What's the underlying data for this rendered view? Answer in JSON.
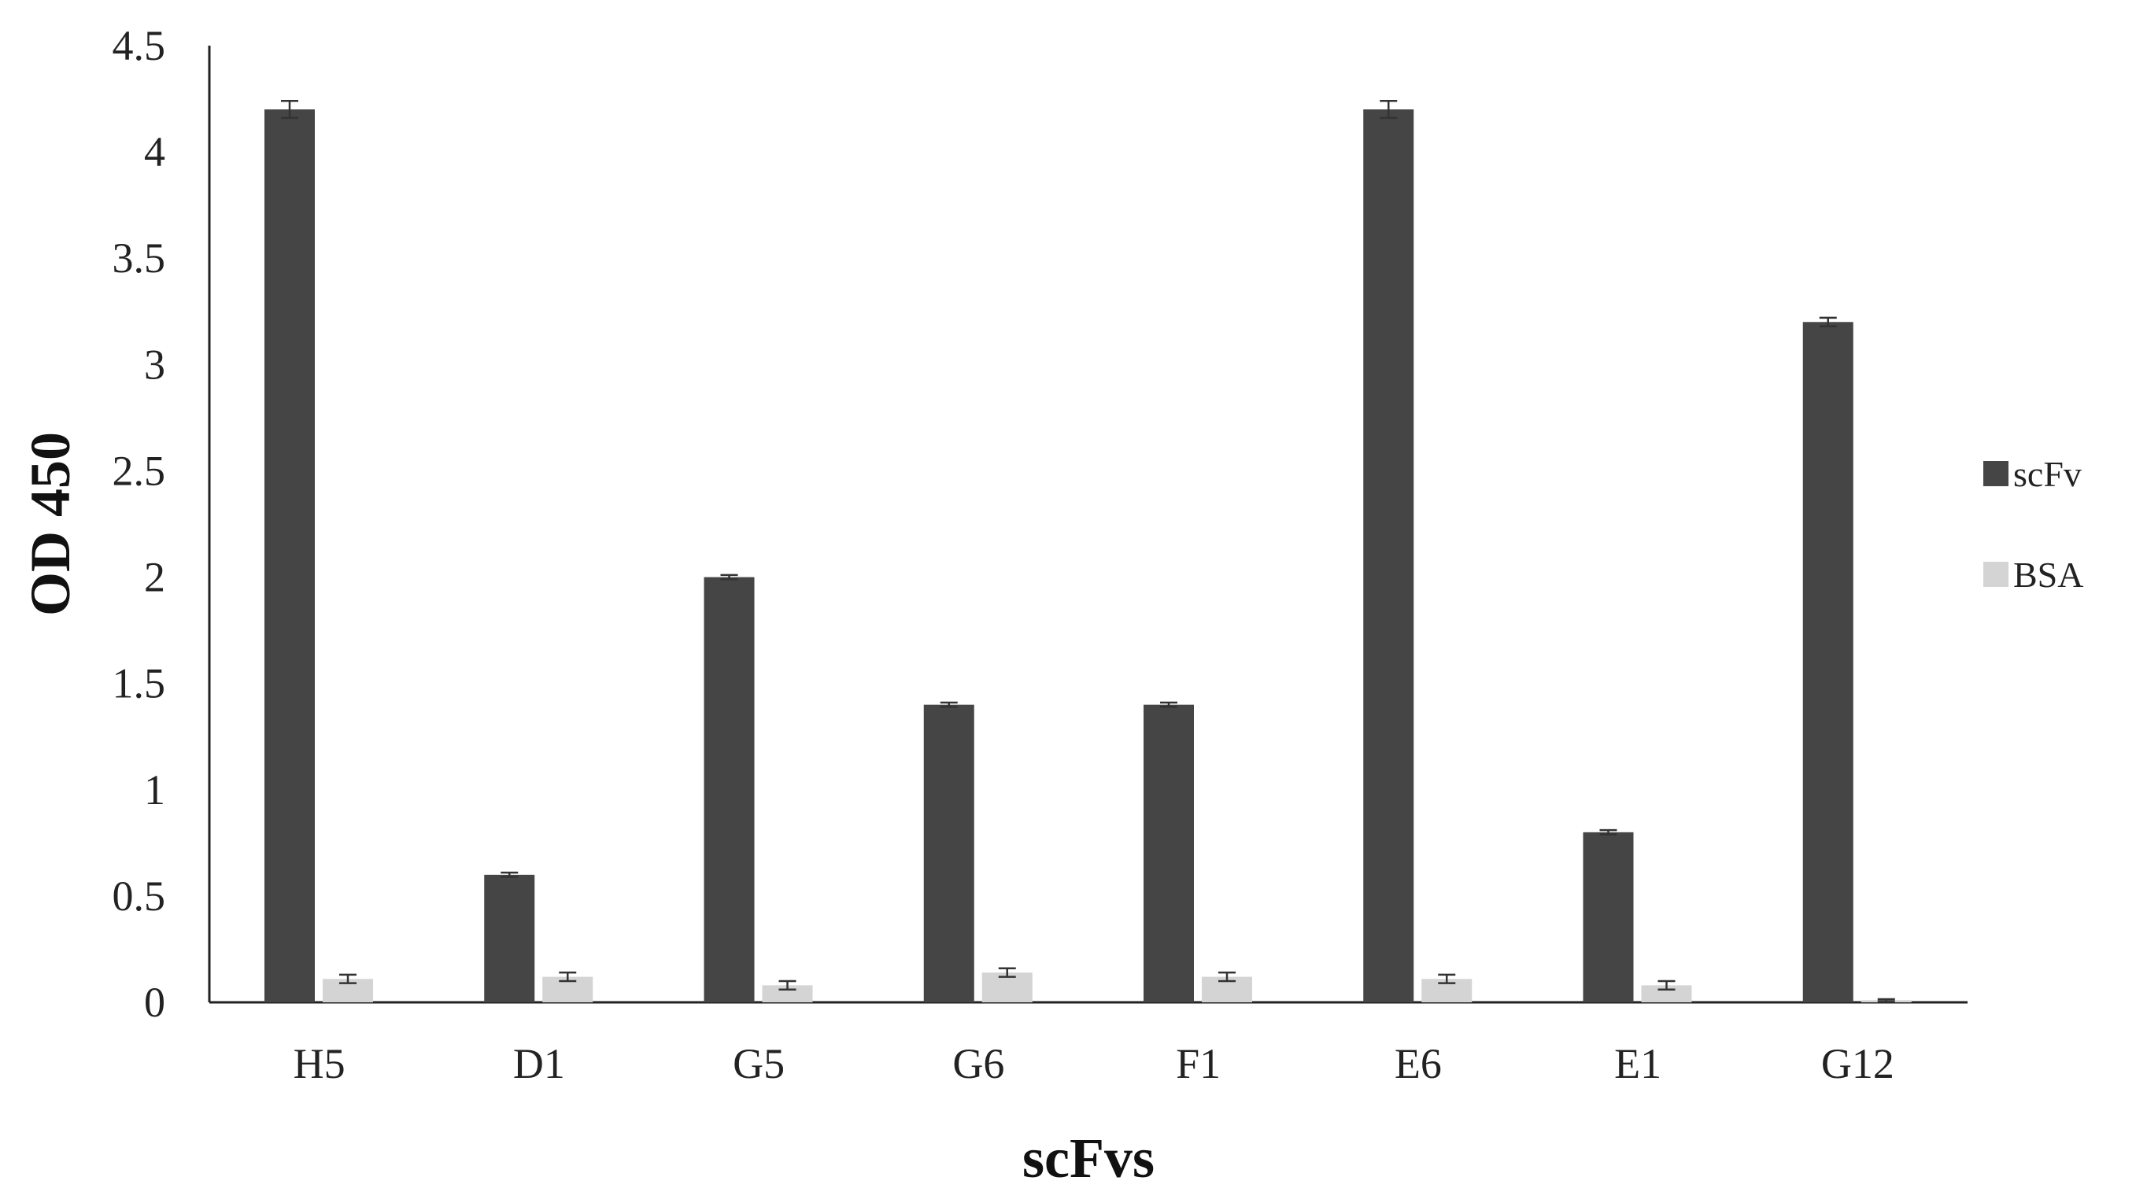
{
  "chart_data": {
    "type": "bar",
    "title": "",
    "xlabel": "scFvs",
    "ylabel": "OD 450",
    "ylim": [
      0,
      4.5
    ],
    "yticks": [
      "0",
      "0.5",
      "1",
      "1.5",
      "2",
      "2.5",
      "3",
      "3.5",
      "4",
      "4.5"
    ],
    "categories": [
      "H5",
      "D1",
      "G5",
      "G6",
      "F1",
      "E6",
      "E1",
      "G12"
    ],
    "series": [
      {
        "name": "scFv",
        "color": "#454545",
        "values": [
          4.2,
          0.6,
          2.0,
          1.4,
          1.4,
          4.2,
          0.8,
          3.2
        ],
        "errors": [
          0.04,
          0.01,
          0.01,
          0.01,
          0.01,
          0.04,
          0.01,
          0.02
        ]
      },
      {
        "name": "BSA",
        "color": "#d4d4d4",
        "values": [
          0.11,
          0.12,
          0.08,
          0.14,
          0.12,
          0.11,
          0.08,
          0.01
        ],
        "errors": [
          0.02,
          0.02,
          0.02,
          0.02,
          0.02,
          0.02,
          0.02,
          0.005
        ]
      }
    ],
    "grid": false,
    "legend_position": "right"
  }
}
